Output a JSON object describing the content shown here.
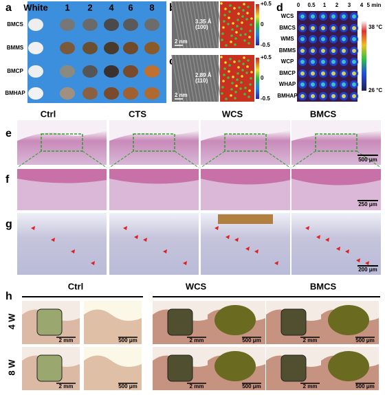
{
  "panel_a": {
    "label": "a",
    "columns": [
      "White",
      "1",
      "2",
      "4",
      "6",
      "8"
    ],
    "rows": [
      "BMCS",
      "BMMS",
      "BMCP",
      "BMHAP"
    ]
  },
  "panel_b": {
    "label": "b",
    "spacing": "3.35 Å",
    "plane": "(100)",
    "scale_bar": "2 nm",
    "colorbar": [
      "+0.5",
      "0",
      "-0.5"
    ]
  },
  "panel_c": {
    "label": "c",
    "spacing": "2.89 Å",
    "plane": "(110)",
    "scale_bar": "2 nm",
    "colorbar": [
      "+0.5",
      "0",
      "-0.5"
    ]
  },
  "panel_d": {
    "label": "d",
    "times": [
      "0",
      "0.5",
      "1",
      "2",
      "3",
      "4",
      "5 min"
    ],
    "rows": [
      "WCS",
      "BMCS",
      "WMS",
      "BMMS",
      "WCP",
      "BMCP",
      "WHAP",
      "BMHAP"
    ],
    "colorbar": [
      "38 °C",
      "26 °C"
    ]
  },
  "panel_e": {
    "label": "e",
    "columns": [
      "Ctrl",
      "CTS",
      "WCS",
      "BMCS"
    ],
    "scale_bar": "500 μm"
  },
  "panel_f": {
    "label": "f",
    "scale_bar": "250 μm"
  },
  "panel_g": {
    "label": "g",
    "scale_bar": "200 μm"
  },
  "panel_h": {
    "label": "h",
    "groups": [
      "Ctrl",
      "WCS",
      "BMCS"
    ],
    "rows": [
      "4 W",
      "8 W"
    ],
    "scale_bars": [
      "2 mm",
      "500 μm"
    ]
  }
}
